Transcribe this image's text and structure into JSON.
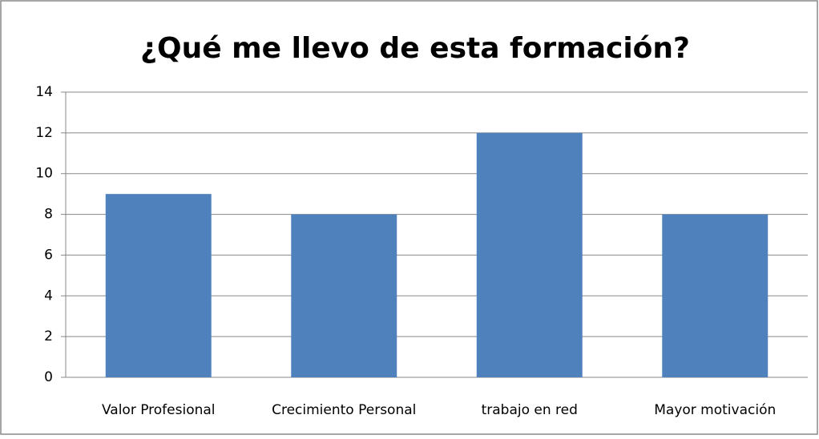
{
  "chart_data": {
    "type": "bar",
    "title": "¿Qué me llevo de esta formación?",
    "categories": [
      "Valor Profesional",
      "Crecimiento Personal",
      "trabajo en red",
      "Mayor motivación"
    ],
    "values": [
      9,
      8,
      12,
      8
    ],
    "color": "#4f81bd",
    "ylim": [
      0,
      14
    ],
    "yticks": [
      0,
      2,
      4,
      6,
      8,
      10,
      12,
      14
    ],
    "grid": true
  }
}
